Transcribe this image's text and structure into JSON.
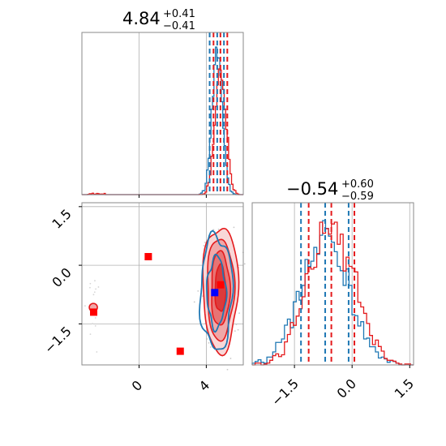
{
  "chart_data": [
    {
      "panel": "top-left",
      "type": "histogram",
      "title": {
        "value": "4.84",
        "plus": "+0.41",
        "minus": "−0.41"
      },
      "xlim": [
        -3.4,
        6.2
      ],
      "grid": true,
      "quantile_lines": {
        "blue": [
          4.2,
          4.65,
          5.05
        ],
        "red": [
          4.43,
          4.84,
          5.25
        ]
      }
    },
    {
      "panel": "bottom-left",
      "type": "scatter",
      "xlim": [
        -3.4,
        6.2
      ],
      "ylim": [
        -2.55,
        1.6
      ],
      "xticks": [
        {
          "v": 0,
          "label": "0"
        },
        {
          "v": 4,
          "label": "4"
        }
      ],
      "yticks": [
        {
          "v": 1.5,
          "label": "1.5"
        },
        {
          "v": 0.0,
          "label": "0.0"
        },
        {
          "v": -1.5,
          "label": "−1.5"
        }
      ],
      "grid": true,
      "markers": {
        "red": [
          [
            0.55,
            0.22
          ],
          [
            -2.7,
            -1.2
          ],
          [
            2.45,
            -2.2
          ],
          [
            4.85,
            -0.5
          ]
        ],
        "blue": [
          [
            4.5,
            -0.7
          ]
        ]
      },
      "red_contour_levels": [
        {
          "cx": 4.84,
          "cy": -0.6,
          "rx": 1.05,
          "ry": 1.6
        },
        {
          "cx": 4.84,
          "cy": -0.6,
          "rx": 0.8,
          "ry": 1.3
        },
        {
          "cx": 4.84,
          "cy": -0.6,
          "rx": 0.55,
          "ry": 0.95
        },
        {
          "cx": 4.84,
          "cy": -0.6,
          "rx": 0.32,
          "ry": 0.6
        }
      ],
      "blue_contour_levels": [
        {
          "cx": 4.6,
          "cy": -0.7,
          "rx": 0.95,
          "ry": 1.45
        },
        {
          "cx": 4.6,
          "cy": -0.7,
          "rx": 0.55,
          "ry": 0.9
        }
      ]
    },
    {
      "panel": "bottom-right",
      "type": "histogram",
      "title": {
        "value": "−0.54",
        "plus": "+0.60",
        "minus": "−0.59"
      },
      "xlim": [
        -2.6,
        1.6
      ],
      "xticks": [
        {
          "v": -1.5,
          "label": "−1.5"
        },
        {
          "v": 0.0,
          "label": "0.0"
        },
        {
          "v": 1.5,
          "label": "1.5"
        }
      ],
      "grid": true,
      "quantile_lines": {
        "blue": [
          -1.33,
          -0.7,
          -0.09
        ],
        "red": [
          -1.13,
          -0.54,
          0.06
        ]
      }
    }
  ],
  "colors": {
    "red": "#e41a1c",
    "blue": "#1f78b4",
    "grid": "#b0b0b0",
    "frame": "#8a8a8a"
  }
}
